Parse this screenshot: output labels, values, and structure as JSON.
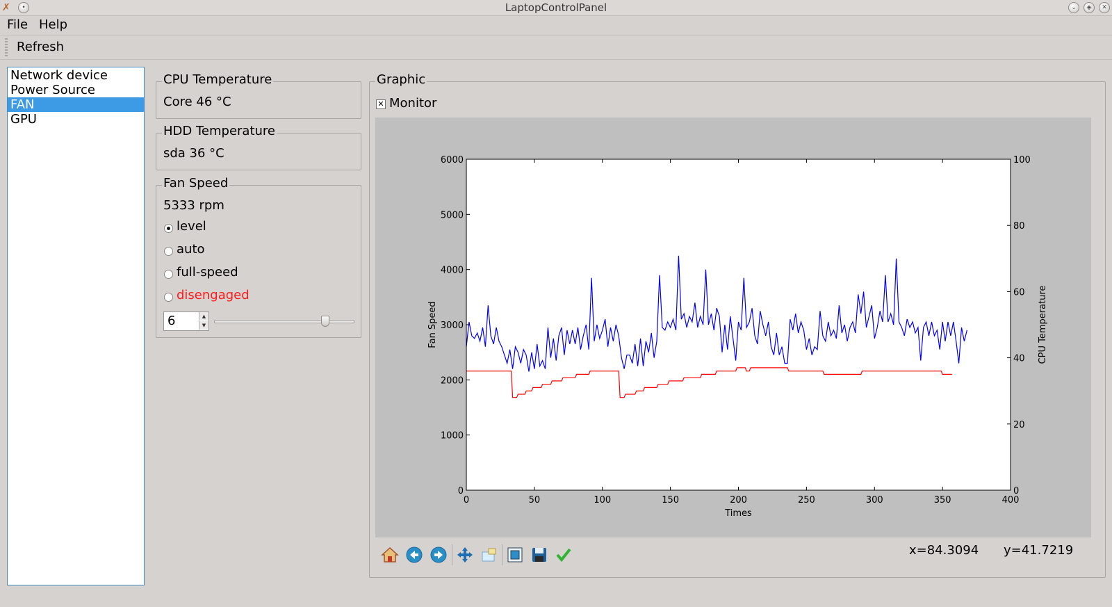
{
  "window": {
    "title": "LaptopControlPanel"
  },
  "menu": {
    "file": "File",
    "help": "Help"
  },
  "toolbar": {
    "refresh": "Refresh"
  },
  "nav": {
    "items": [
      {
        "label": "Network device",
        "selected": false
      },
      {
        "label": "Power Source",
        "selected": false
      },
      {
        "label": "FAN",
        "selected": true
      },
      {
        "label": "GPU",
        "selected": false
      }
    ]
  },
  "cpu_temp": {
    "title": "CPU Temperature",
    "value": "Core 46 °C"
  },
  "hdd_temp": {
    "title": "HDD Temperature",
    "value": "sda 36 °C"
  },
  "fan": {
    "title": "Fan Speed",
    "rpm": "5333 rpm",
    "modes": [
      {
        "label": "level",
        "checked": true,
        "color": "#000000"
      },
      {
        "label": "auto",
        "checked": false,
        "color": "#000000"
      },
      {
        "label": "full-speed",
        "checked": false,
        "color": "#000000"
      },
      {
        "label": "disengaged",
        "checked": false,
        "color": "#ff1a1a"
      }
    ],
    "level_value": "6",
    "slider_fraction": 0.79
  },
  "graphic": {
    "title": "Graphic",
    "monitor_label": "Monitor",
    "monitor_checked": true,
    "coords": {
      "x": "x=84.3094",
      "y": "y=41.7219"
    }
  },
  "icons": [
    "home-icon",
    "back-icon",
    "forward-icon",
    "pan-icon",
    "zoom-icon",
    "subplots-icon",
    "save-icon",
    "edit-check-icon"
  ],
  "chart_data": {
    "type": "line",
    "xlabel": "Times",
    "ylabel": "Fan Speed",
    "y2label": "CPU Temperature",
    "xlim": [
      0,
      400
    ],
    "ylim": [
      0,
      6000
    ],
    "y2lim": [
      0,
      100
    ],
    "xticks": [
      0,
      50,
      100,
      150,
      200,
      250,
      300,
      350,
      400
    ],
    "yticks": [
      0,
      1000,
      2000,
      3000,
      4000,
      5000,
      6000
    ],
    "y2ticks": [
      0,
      20,
      40,
      60,
      80,
      100
    ],
    "series": [
      {
        "axis": "left",
        "color": "#0000ff",
        "points": [
          [
            0,
            2600
          ],
          [
            2,
            3050
          ],
          [
            4,
            2800
          ],
          [
            6,
            2750
          ],
          [
            8,
            2850
          ],
          [
            10,
            2700
          ],
          [
            12,
            2950
          ],
          [
            14,
            2600
          ],
          [
            16,
            3350
          ],
          [
            18,
            2800
          ],
          [
            20,
            2650
          ],
          [
            22,
            2950
          ],
          [
            24,
            2700
          ],
          [
            26,
            2600
          ],
          [
            28,
            2450
          ],
          [
            30,
            2300
          ],
          [
            32,
            2550
          ],
          [
            34,
            2200
          ],
          [
            36,
            2600
          ],
          [
            38,
            2500
          ],
          [
            40,
            2300
          ],
          [
            42,
            2550
          ],
          [
            44,
            2450
          ],
          [
            46,
            2150
          ],
          [
            48,
            2500
          ],
          [
            50,
            2200
          ],
          [
            52,
            2650
          ],
          [
            54,
            2250
          ],
          [
            56,
            2350
          ],
          [
            58,
            2200
          ],
          [
            60,
            2950
          ],
          [
            62,
            2400
          ],
          [
            64,
            2750
          ],
          [
            66,
            2350
          ],
          [
            68,
            2800
          ],
          [
            70,
            2950
          ],
          [
            72,
            2450
          ],
          [
            74,
            2900
          ],
          [
            76,
            2650
          ],
          [
            78,
            2900
          ],
          [
            80,
            2650
          ],
          [
            82,
            2950
          ],
          [
            84,
            2550
          ],
          [
            86,
            2800
          ],
          [
            88,
            3000
          ],
          [
            90,
            2550
          ],
          [
            92,
            3850
          ],
          [
            94,
            2700
          ],
          [
            96,
            3000
          ],
          [
            98,
            2750
          ],
          [
            100,
            2900
          ],
          [
            102,
            3100
          ],
          [
            104,
            2600
          ],
          [
            106,
            2950
          ],
          [
            108,
            2700
          ],
          [
            110,
            3000
          ],
          [
            112,
            2800
          ],
          [
            114,
            2400
          ],
          [
            116,
            2200
          ],
          [
            118,
            2450
          ],
          [
            120,
            2450
          ],
          [
            122,
            2300
          ],
          [
            124,
            2650
          ],
          [
            126,
            2250
          ],
          [
            128,
            2750
          ],
          [
            130,
            2250
          ],
          [
            132,
            2700
          ],
          [
            134,
            2500
          ],
          [
            136,
            2850
          ],
          [
            138,
            2400
          ],
          [
            140,
            2700
          ],
          [
            142,
            3900
          ],
          [
            144,
            2950
          ],
          [
            146,
            2900
          ],
          [
            148,
            3050
          ],
          [
            150,
            2950
          ],
          [
            152,
            3100
          ],
          [
            154,
            2900
          ],
          [
            156,
            4250
          ],
          [
            158,
            3100
          ],
          [
            160,
            3200
          ],
          [
            162,
            2950
          ],
          [
            164,
            3150
          ],
          [
            166,
            3050
          ],
          [
            168,
            3400
          ],
          [
            170,
            2950
          ],
          [
            172,
            3150
          ],
          [
            174,
            3000
          ],
          [
            176,
            4000
          ],
          [
            178,
            3000
          ],
          [
            180,
            3200
          ],
          [
            182,
            2900
          ],
          [
            184,
            3300
          ],
          [
            186,
            3150
          ],
          [
            188,
            2500
          ],
          [
            190,
            3000
          ],
          [
            192,
            2550
          ],
          [
            194,
            3150
          ],
          [
            196,
            2750
          ],
          [
            198,
            2350
          ],
          [
            200,
            3050
          ],
          [
            202,
            2900
          ],
          [
            204,
            3850
          ],
          [
            206,
            2950
          ],
          [
            208,
            3050
          ],
          [
            210,
            3300
          ],
          [
            212,
            2800
          ],
          [
            214,
            2650
          ],
          [
            216,
            3250
          ],
          [
            218,
            3000
          ],
          [
            220,
            2800
          ],
          [
            222,
            3050
          ],
          [
            224,
            2600
          ],
          [
            226,
            2450
          ],
          [
            228,
            2850
          ],
          [
            230,
            2450
          ],
          [
            232,
            2600
          ],
          [
            234,
            2300
          ],
          [
            236,
            2300
          ],
          [
            238,
            3100
          ],
          [
            240,
            2900
          ],
          [
            242,
            3200
          ],
          [
            244,
            2850
          ],
          [
            246,
            3050
          ],
          [
            248,
            2900
          ],
          [
            250,
            2550
          ],
          [
            252,
            2750
          ],
          [
            254,
            2450
          ],
          [
            256,
            2600
          ],
          [
            258,
            2550
          ],
          [
            260,
            3250
          ],
          [
            262,
            2800
          ],
          [
            264,
            2700
          ],
          [
            266,
            3050
          ],
          [
            268,
            2800
          ],
          [
            270,
            2900
          ],
          [
            272,
            2750
          ],
          [
            274,
            3350
          ],
          [
            276,
            2850
          ],
          [
            278,
            3000
          ],
          [
            280,
            2700
          ],
          [
            282,
            2950
          ],
          [
            284,
            3050
          ],
          [
            286,
            2850
          ],
          [
            288,
            3550
          ],
          [
            290,
            3200
          ],
          [
            292,
            3600
          ],
          [
            294,
            2950
          ],
          [
            296,
            3150
          ],
          [
            298,
            3350
          ],
          [
            300,
            2750
          ],
          [
            302,
            2950
          ],
          [
            304,
            3250
          ],
          [
            306,
            3050
          ],
          [
            308,
            3900
          ],
          [
            310,
            3050
          ],
          [
            312,
            3200
          ],
          [
            314,
            3000
          ],
          [
            316,
            4200
          ],
          [
            318,
            3050
          ],
          [
            320,
            2950
          ],
          [
            322,
            2800
          ],
          [
            324,
            3100
          ],
          [
            326,
            2950
          ],
          [
            328,
            3050
          ],
          [
            330,
            2850
          ],
          [
            332,
            2950
          ],
          [
            334,
            2350
          ],
          [
            336,
            2950
          ],
          [
            338,
            3050
          ],
          [
            340,
            2800
          ],
          [
            342,
            3050
          ],
          [
            344,
            2800
          ],
          [
            346,
            2900
          ],
          [
            348,
            2550
          ],
          [
            350,
            3050
          ],
          [
            352,
            2700
          ],
          [
            354,
            3050
          ],
          [
            356,
            2800
          ],
          [
            358,
            3050
          ],
          [
            360,
            2700
          ],
          [
            362,
            2300
          ],
          [
            364,
            2950
          ],
          [
            366,
            2700
          ],
          [
            368,
            2900
          ]
        ]
      },
      {
        "axis": "right",
        "color": "#ff0000",
        "points": [
          [
            0,
            36
          ],
          [
            33,
            36
          ],
          [
            34,
            28
          ],
          [
            37,
            28
          ],
          [
            38,
            29
          ],
          [
            43,
            29
          ],
          [
            44,
            30
          ],
          [
            48,
            30
          ],
          [
            49,
            31
          ],
          [
            55,
            31
          ],
          [
            56,
            32
          ],
          [
            62,
            32
          ],
          [
            63,
            33
          ],
          [
            70,
            33
          ],
          [
            71,
            34
          ],
          [
            80,
            34
          ],
          [
            81,
            35
          ],
          [
            90,
            35
          ],
          [
            91,
            36
          ],
          [
            112,
            36
          ],
          [
            113,
            28
          ],
          [
            116,
            28
          ],
          [
            117,
            29
          ],
          [
            124,
            29
          ],
          [
            125,
            30
          ],
          [
            130,
            30
          ],
          [
            131,
            31
          ],
          [
            140,
            31
          ],
          [
            141,
            32
          ],
          [
            148,
            32
          ],
          [
            149,
            33
          ],
          [
            159,
            33
          ],
          [
            160,
            34
          ],
          [
            172,
            34
          ],
          [
            173,
            35
          ],
          [
            183,
            35
          ],
          [
            184,
            36
          ],
          [
            198,
            36
          ],
          [
            199,
            37
          ],
          [
            205,
            37
          ],
          [
            206,
            36
          ],
          [
            208,
            36
          ],
          [
            209,
            37
          ],
          [
            236,
            37
          ],
          [
            237,
            36
          ],
          [
            262,
            36
          ],
          [
            263,
            35
          ],
          [
            290,
            35
          ],
          [
            291,
            36
          ],
          [
            349,
            36
          ],
          [
            350,
            35
          ],
          [
            357,
            35
          ]
        ]
      }
    ]
  }
}
